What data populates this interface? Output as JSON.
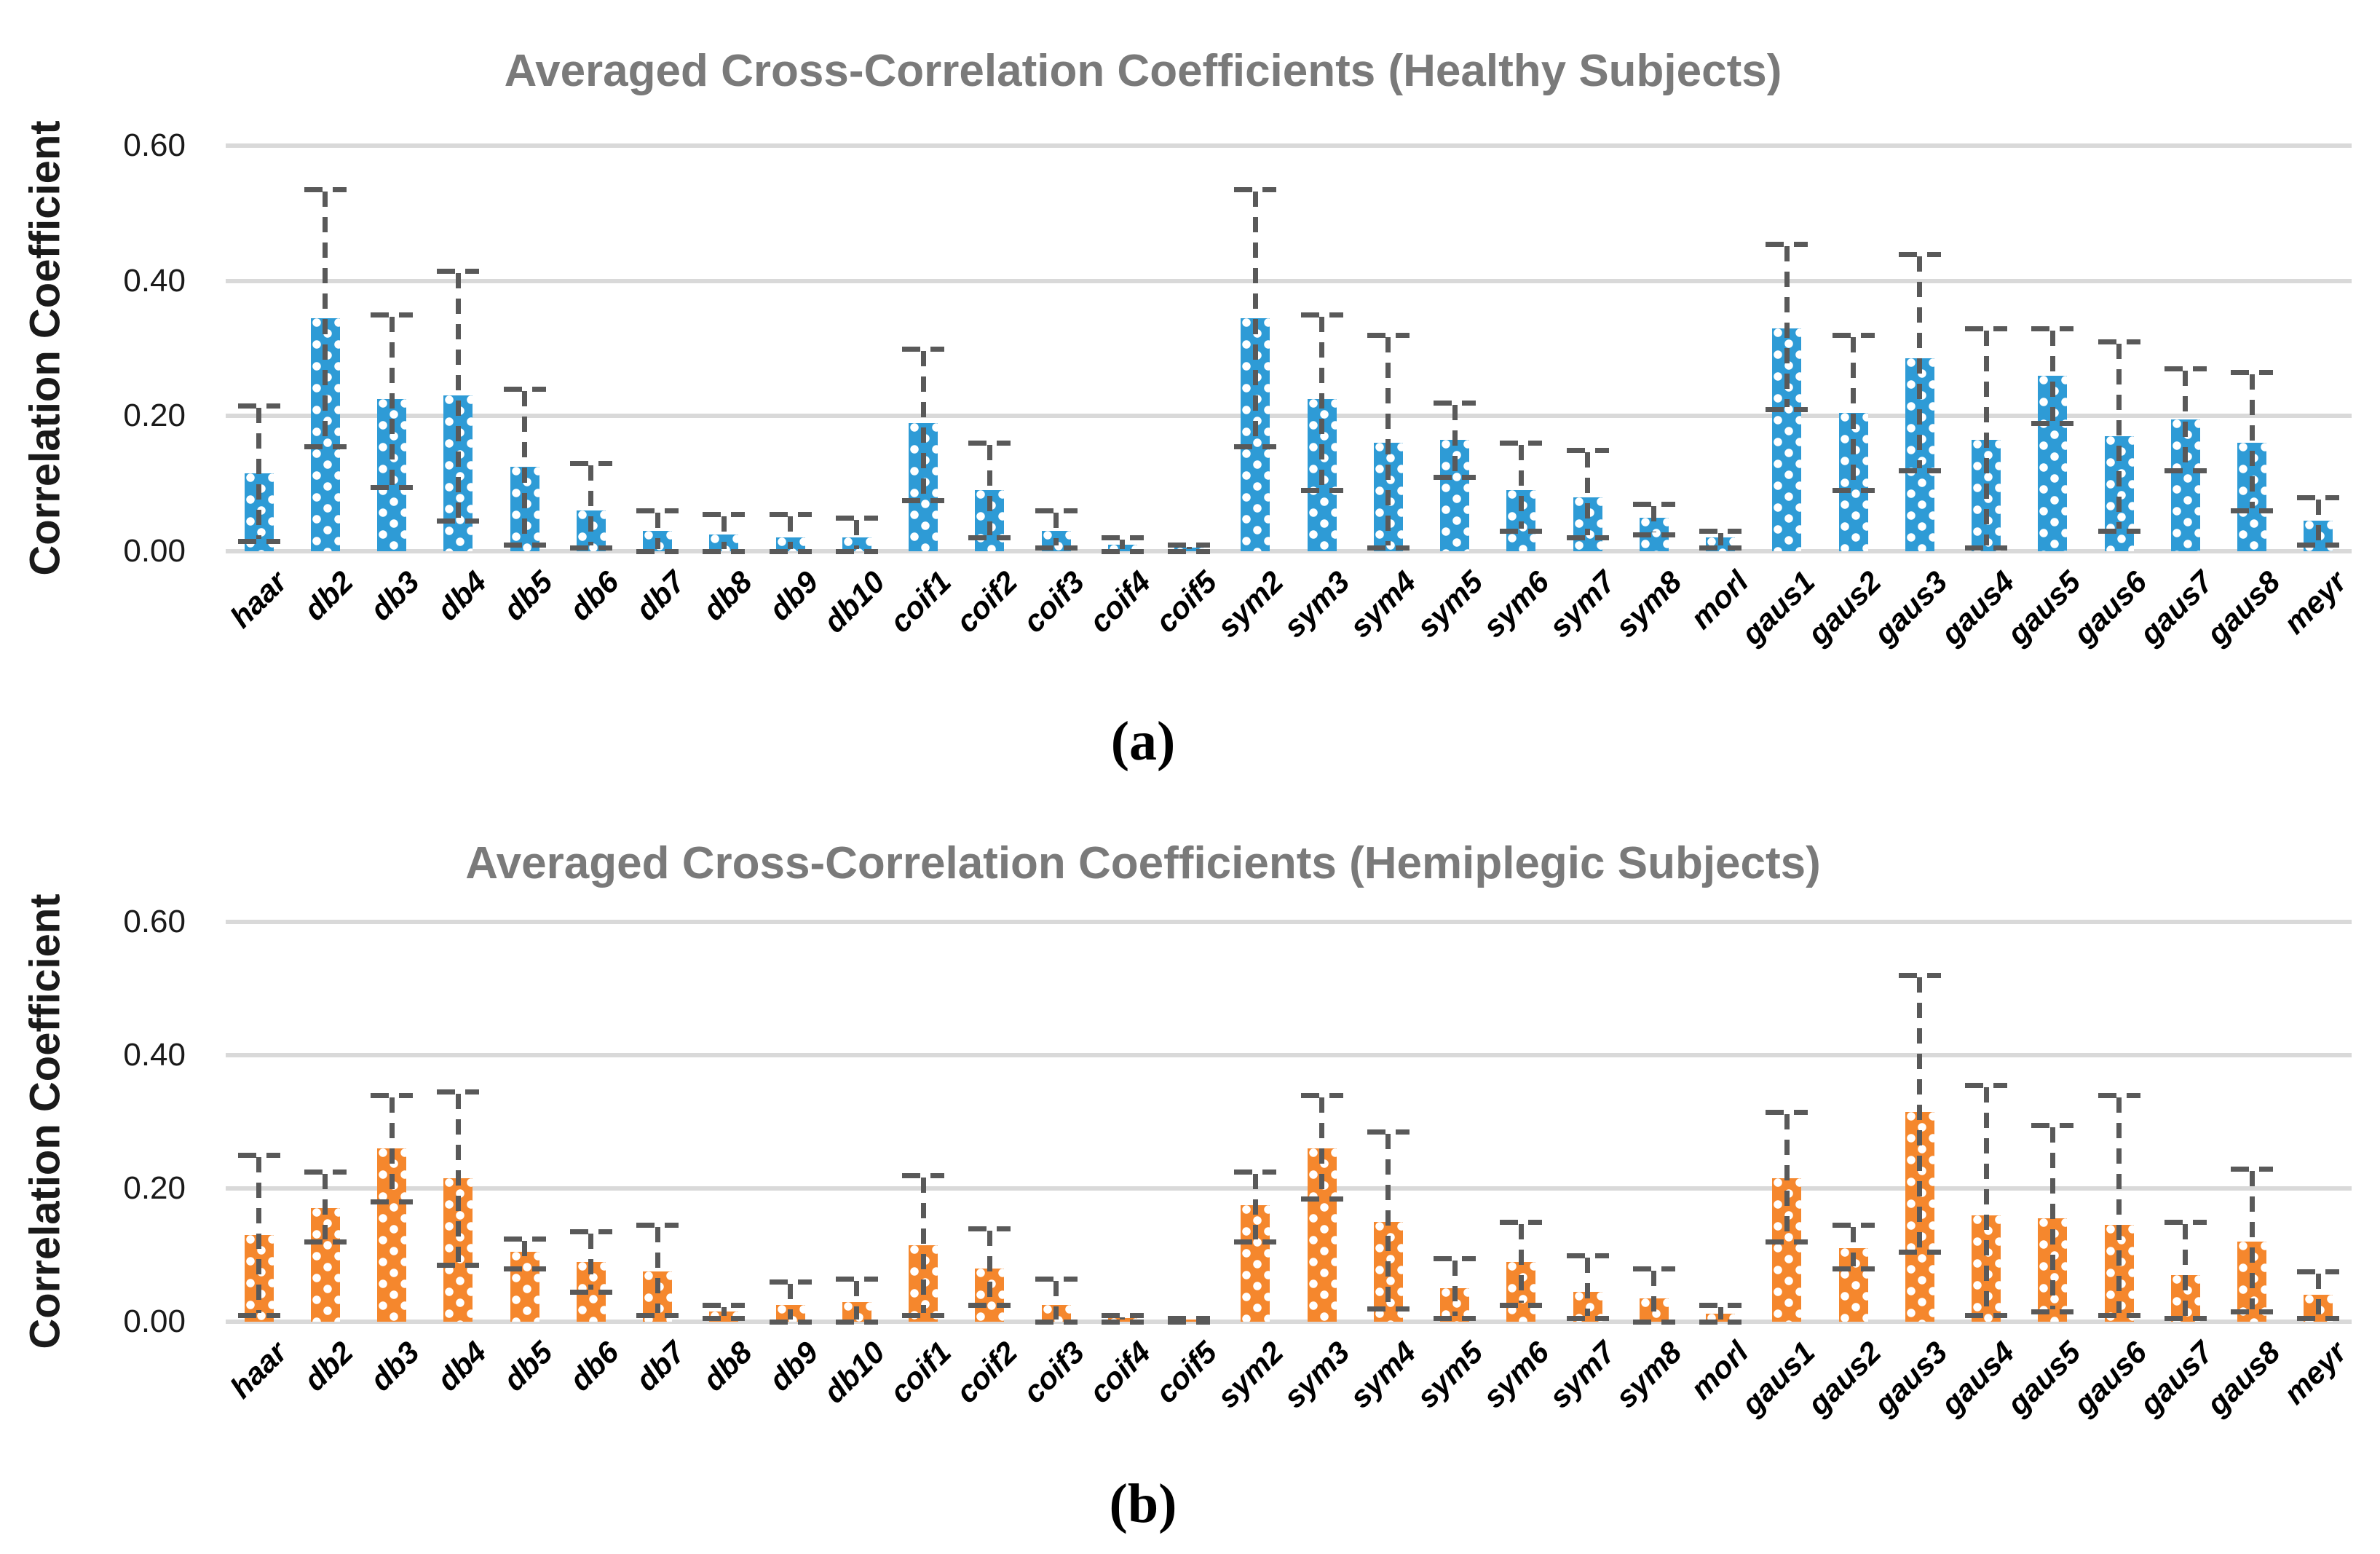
{
  "figure": {
    "background": "#FFFFFF"
  },
  "chart_data": [
    {
      "type": "bar",
      "title": "Averaged Cross-Correlation Coefficients (Healthy Subjects)",
      "panel_label": "(a)",
      "xlabel": "",
      "ylabel": "Correlation Coefficient",
      "ylim": [
        0,
        0.6
      ],
      "yticks": [
        "0.00",
        "0.20",
        "0.40",
        "0.60"
      ],
      "grid": true,
      "legend": "none",
      "bar_color": "#2E9BD6",
      "bar_pattern": "white-dots",
      "error_bar_color": "#595959",
      "gridline_color": "#D9D9D9",
      "categories": [
        "haar",
        "db2",
        "db3",
        "db4",
        "db5",
        "db6",
        "db7",
        "db8",
        "db9",
        "db10",
        "coif1",
        "coif2",
        "coif3",
        "coif4",
        "coif5",
        "sym2",
        "sym3",
        "sym4",
        "sym5",
        "sym6",
        "sym7",
        "sym8",
        "morl",
        "gaus1",
        "gaus2",
        "gaus3",
        "gaus4",
        "gaus5",
        "gaus6",
        "gaus7",
        "gaus8",
        "meyr"
      ],
      "values": [
        0.115,
        0.345,
        0.225,
        0.23,
        0.125,
        0.06,
        0.03,
        0.025,
        0.02,
        0.02,
        0.19,
        0.09,
        0.03,
        0.01,
        0.005,
        0.345,
        0.225,
        0.16,
        0.165,
        0.09,
        0.08,
        0.05,
        0.02,
        0.33,
        0.205,
        0.285,
        0.165,
        0.26,
        0.17,
        0.195,
        0.16,
        0.045
      ],
      "error_low": [
        0.015,
        0.155,
        0.095,
        0.045,
        0.01,
        0.005,
        0.0,
        0.0,
        0.0,
        0.0,
        0.075,
        0.02,
        0.005,
        0.0,
        0.0,
        0.155,
        0.09,
        0.005,
        0.11,
        0.03,
        0.02,
        0.025,
        0.005,
        0.21,
        0.09,
        0.12,
        0.005,
        0.19,
        0.03,
        0.12,
        0.06,
        0.01
      ],
      "error_high": [
        0.215,
        0.535,
        0.35,
        0.415,
        0.24,
        0.13,
        0.06,
        0.055,
        0.055,
        0.05,
        0.3,
        0.16,
        0.06,
        0.02,
        0.01,
        0.535,
        0.35,
        0.32,
        0.22,
        0.16,
        0.15,
        0.07,
        0.03,
        0.455,
        0.32,
        0.44,
        0.33,
        0.33,
        0.31,
        0.27,
        0.265,
        0.08
      ]
    },
    {
      "type": "bar",
      "title": "Averaged Cross-Correlation Coefficients (Hemiplegic Subjects)",
      "panel_label": "(b)",
      "xlabel": "",
      "ylabel": "Correlation Coefficient",
      "ylim": [
        0,
        0.6
      ],
      "yticks": [
        "0.00",
        "0.20",
        "0.40",
        "0.60"
      ],
      "grid": true,
      "legend": "none",
      "bar_color": "#F5872D",
      "bar_pattern": "white-dots",
      "error_bar_color": "#595959",
      "gridline_color": "#D9D9D9",
      "categories": [
        "haar",
        "db2",
        "db3",
        "db4",
        "db5",
        "db6",
        "db7",
        "db8",
        "db9",
        "db10",
        "coif1",
        "coif2",
        "coif3",
        "coif4",
        "coif5",
        "sym2",
        "sym3",
        "sym4",
        "sym5",
        "sym6",
        "sym7",
        "sym8",
        "morl",
        "gaus1",
        "gaus2",
        "gaus3",
        "gaus4",
        "gaus5",
        "gaus6",
        "gaus7",
        "gaus8",
        "meyr"
      ],
      "values": [
        0.13,
        0.17,
        0.26,
        0.215,
        0.105,
        0.09,
        0.075,
        0.015,
        0.025,
        0.03,
        0.115,
        0.08,
        0.025,
        0.005,
        0.003,
        0.175,
        0.26,
        0.15,
        0.05,
        0.09,
        0.045,
        0.035,
        0.012,
        0.215,
        0.11,
        0.315,
        0.16,
        0.155,
        0.145,
        0.07,
        0.12,
        0.04
      ],
      "error_low": [
        0.01,
        0.12,
        0.18,
        0.085,
        0.08,
        0.045,
        0.01,
        0.005,
        0.0,
        0.0,
        0.01,
        0.025,
        0.0,
        0.0,
        0.0,
        0.12,
        0.185,
        0.02,
        0.005,
        0.025,
        0.005,
        0.0,
        0.0,
        0.12,
        0.08,
        0.105,
        0.01,
        0.015,
        0.01,
        0.005,
        0.015,
        0.005
      ],
      "error_high": [
        0.25,
        0.225,
        0.34,
        0.345,
        0.125,
        0.135,
        0.145,
        0.025,
        0.06,
        0.065,
        0.22,
        0.14,
        0.065,
        0.01,
        0.005,
        0.225,
        0.34,
        0.285,
        0.095,
        0.15,
        0.1,
        0.08,
        0.025,
        0.315,
        0.145,
        0.52,
        0.355,
        0.295,
        0.34,
        0.15,
        0.23,
        0.075
      ]
    }
  ]
}
